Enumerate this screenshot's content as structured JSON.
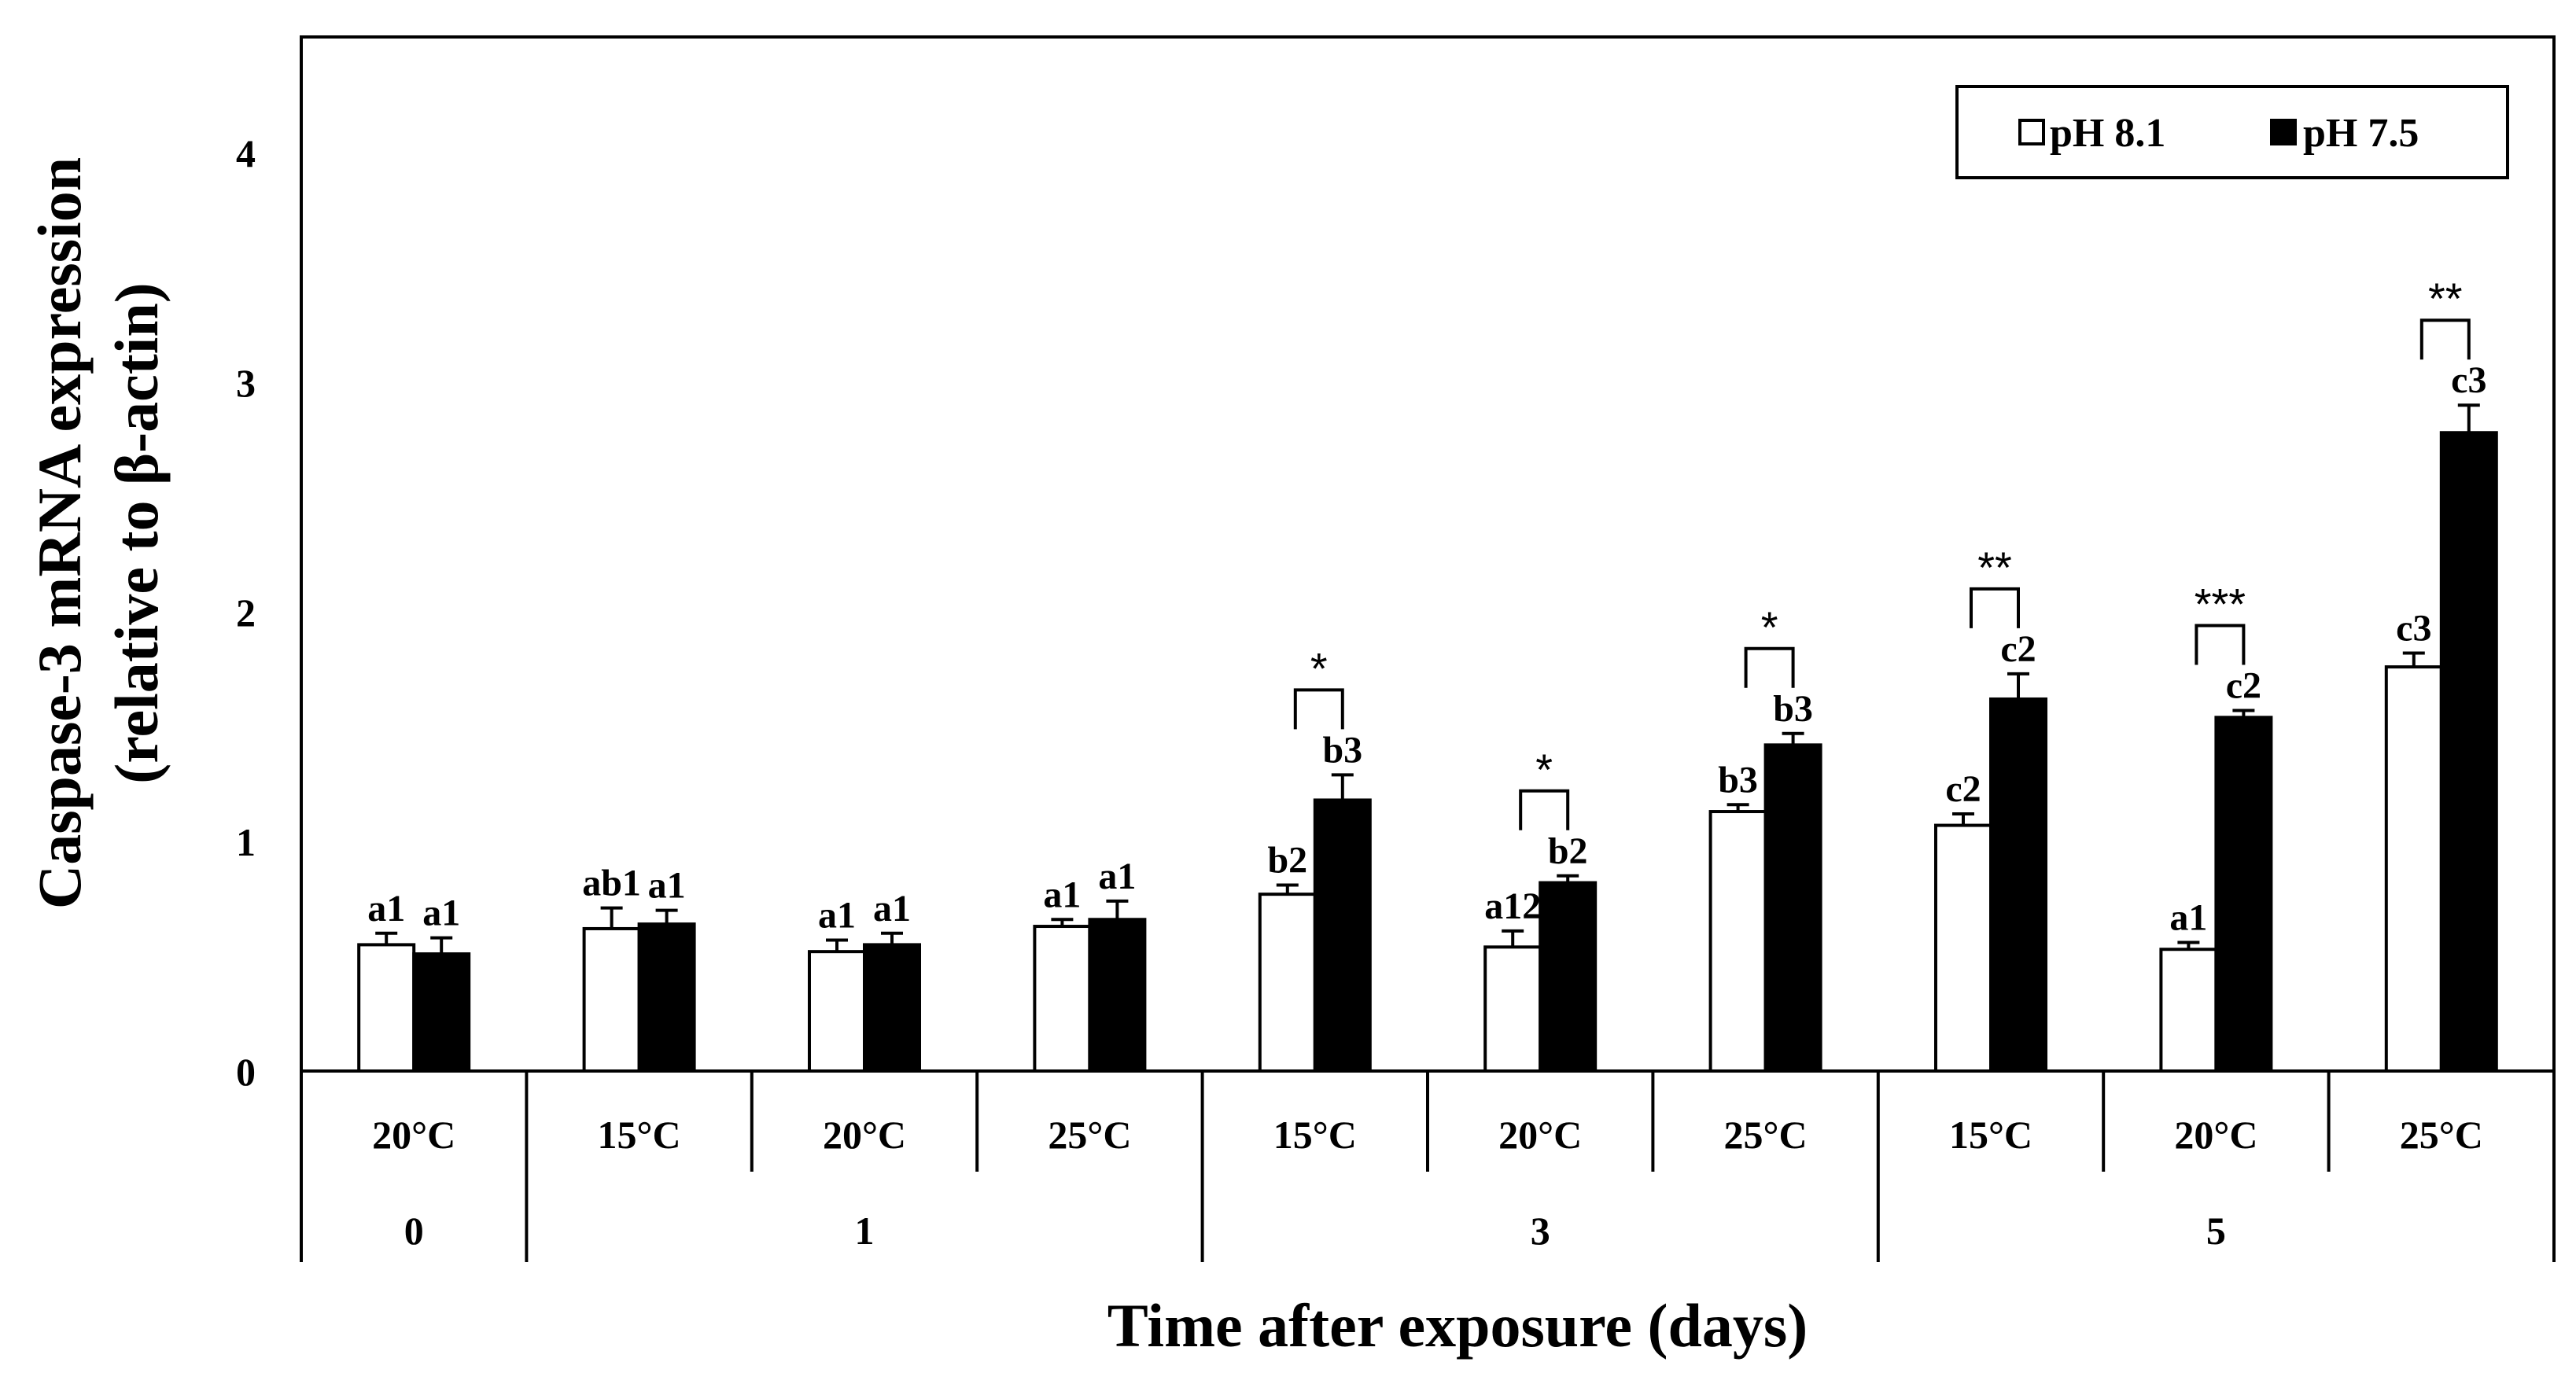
{
  "chart_data": {
    "type": "bar",
    "ylabel_line1": "Caspase-3 mRNA expression",
    "ylabel_line2": "(relative to β-actin)",
    "xlabel": "Time after exposure (days)",
    "ylim": [
      0,
      4.5
    ],
    "yticks": [
      "0",
      "1",
      "2",
      "3",
      "4"
    ],
    "ytick_values": [
      0,
      1,
      2,
      3,
      4
    ],
    "legend": {
      "placement": "top-right",
      "entries": [
        "pH 8.1",
        "pH 7.5"
      ]
    },
    "colors": {
      "ph81": "#ffffff",
      "ph75": "#000000",
      "stroke": "#000000"
    },
    "day_groups": [
      {
        "label": "0",
        "span": [
          0,
          1
        ]
      },
      {
        "label": "1",
        "span": [
          1,
          4
        ]
      },
      {
        "label": "3",
        "span": [
          4,
          7
        ]
      },
      {
        "label": "5",
        "span": [
          7,
          10
        ]
      }
    ],
    "groups": [
      {
        "temp": "20°C",
        "day": "0",
        "ph81": 0.55,
        "ph81_err": 0.05,
        "ph75": 0.51,
        "ph75_err": 0.07,
        "ph81_label": "a1",
        "ph75_label": "a1",
        "sig": ""
      },
      {
        "temp": "15°C",
        "day": "1",
        "ph81": 0.62,
        "ph81_err": 0.09,
        "ph75": 0.64,
        "ph75_err": 0.06,
        "ph81_label": "ab1",
        "ph75_label": "a1",
        "sig": ""
      },
      {
        "temp": "20°C",
        "day": "1",
        "ph81": 0.52,
        "ph81_err": 0.05,
        "ph75": 0.55,
        "ph75_err": 0.05,
        "ph81_label": "a1",
        "ph75_label": "a1",
        "sig": ""
      },
      {
        "temp": "25°C",
        "day": "1",
        "ph81": 0.63,
        "ph81_err": 0.03,
        "ph75": 0.66,
        "ph75_err": 0.08,
        "ph81_label": "a1",
        "ph75_label": "a1",
        "sig": ""
      },
      {
        "temp": "15°C",
        "day": "3",
        "ph81": 0.77,
        "ph81_err": 0.04,
        "ph75": 1.18,
        "ph75_err": 0.11,
        "ph81_label": "b2",
        "ph75_label": "b3",
        "sig": "*"
      },
      {
        "temp": "20°C",
        "day": "3",
        "ph81": 0.54,
        "ph81_err": 0.07,
        "ph75": 0.82,
        "ph75_err": 0.03,
        "ph81_label": "a12",
        "ph75_label": "b2",
        "sig": "*"
      },
      {
        "temp": "25°C",
        "day": "3",
        "ph81": 1.13,
        "ph81_err": 0.03,
        "ph75": 1.42,
        "ph75_err": 0.05,
        "ph81_label": "b3",
        "ph75_label": "b3",
        "sig": "*"
      },
      {
        "temp": "15°C",
        "day": "5",
        "ph81": 1.07,
        "ph81_err": 0.05,
        "ph75": 1.62,
        "ph75_err": 0.11,
        "ph81_label": "c2",
        "ph75_label": "c2",
        "sig": "**"
      },
      {
        "temp": "20°C",
        "day": "5",
        "ph81": 0.53,
        "ph81_err": 0.03,
        "ph75": 1.54,
        "ph75_err": 0.03,
        "ph81_label": "a1",
        "ph75_label": "c2",
        "sig": "***"
      },
      {
        "temp": "25°C",
        "day": "5",
        "ph81": 1.76,
        "ph81_err": 0.06,
        "ph75": 2.78,
        "ph75_err": 0.12,
        "ph81_label": "c3",
        "ph75_label": "c3",
        "sig": "**"
      }
    ]
  }
}
